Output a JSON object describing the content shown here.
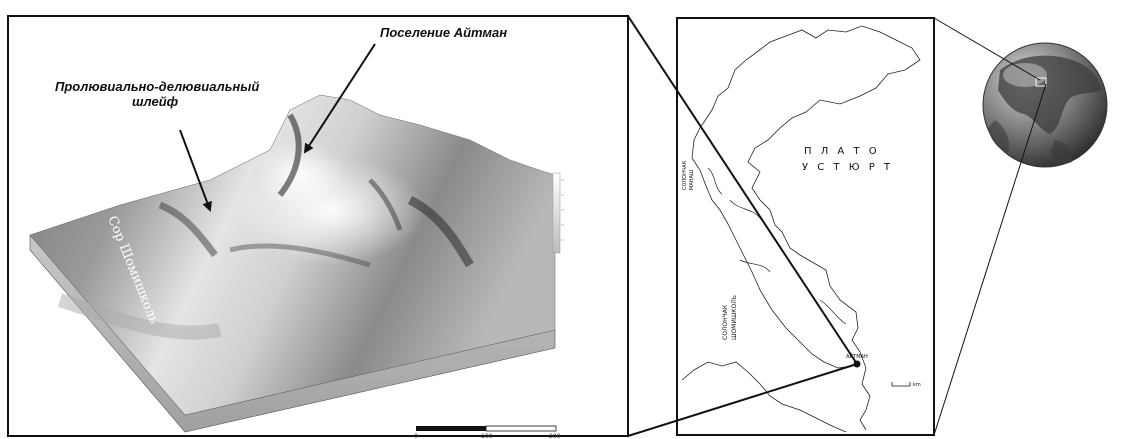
{
  "relief_panel": {
    "annotation_settlement": "Поселение Айтман",
    "annotation_fan_line1": "Пролювиально-делювиальный",
    "annotation_fan_line2": "шлейф",
    "valley_label": "Сор Шомишколь",
    "scale_labels": [
      "0",
      "100",
      "200"
    ]
  },
  "location_map": {
    "plateau_line1": "П Л А Т О",
    "plateau_line2": "У С Т Ю Р Т",
    "salt_marsh_north_line1": "СОЛОНЧАК",
    "salt_marsh_north_line2": "МАНАШ",
    "salt_marsh_south_line1": "СОЛОНЧАК",
    "salt_marsh_south_line2": "ШОМИШКОЛЬ",
    "site_label": "АЙТМАН",
    "scale_unit": "km"
  },
  "globe": {
    "icon": "globe-icon",
    "ocean_color": "#8c8c8c",
    "land_color": "#3c3c3c"
  }
}
